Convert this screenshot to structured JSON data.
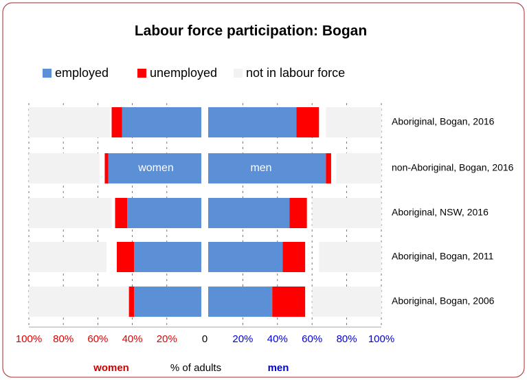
{
  "chart_data": {
    "type": "diverging_bar",
    "title": "Labour force participation: Bogan",
    "categories": [
      "Aboriginal, Bogan, 2016",
      "non-Aboriginal, Bogan, 2016",
      "Aboriginal, NSW, 2016",
      "Aboriginal, Bogan, 2011",
      "Aboriginal, Bogan, 2006"
    ],
    "series": [
      {
        "name": "employed",
        "color": "#5b8fd6",
        "women": [
          46,
          54,
          43,
          39,
          39
        ],
        "men": [
          51,
          68,
          47,
          43,
          37
        ]
      },
      {
        "name": "unemployed",
        "color": "#ff0000",
        "women": [
          6,
          2,
          7,
          10,
          3
        ],
        "men": [
          13,
          3,
          10,
          13,
          19
        ]
      },
      {
        "name": "not in labour force",
        "color": "#f2f2f2",
        "women": [
          47,
          41,
          48,
          45,
          58
        ],
        "men": [
          32,
          26,
          40,
          36,
          40
        ]
      }
    ],
    "annotations": [
      "women",
      "men"
    ],
    "xlim": [
      0,
      100
    ],
    "women_xticks": [
      {
        "value": 100,
        "label": "100%"
      },
      {
        "value": 80,
        "label": "80%"
      },
      {
        "value": 60,
        "label": "60%"
      },
      {
        "value": 40,
        "label": "40%"
      },
      {
        "value": 20,
        "label": "20%"
      }
    ],
    "men_xticks": [
      0,
      {
        "value": 20,
        "label": "20%"
      },
      {
        "value": 40,
        "label": "40%"
      },
      {
        "value": 60,
        "label": "60%"
      },
      {
        "value": 80,
        "label": "80%"
      },
      {
        "value": 100,
        "label": "100%"
      }
    ],
    "x_labels": [
      "women",
      "% of adults",
      "men"
    ],
    "grid": true
  }
}
